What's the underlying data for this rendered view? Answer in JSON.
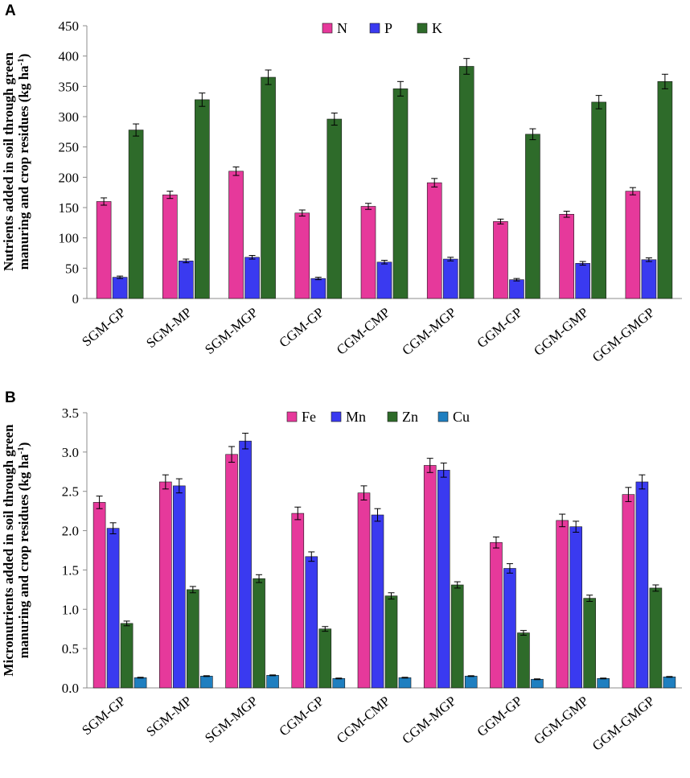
{
  "chart_data": [
    {
      "panel": "A",
      "type": "bar",
      "title": "",
      "ylabel_line1": "Nutrients added in soil through green",
      "ylabel_line2": "manuring and crop residues (kg ha",
      "ylabel_sup": "-1",
      "ylabel_close": ")",
      "xlabel": "",
      "ylim": [
        0,
        450
      ],
      "ytick_step": 50,
      "yticks": [
        "0",
        "50",
        "100",
        "150",
        "200",
        "250",
        "300",
        "350",
        "400",
        "450"
      ],
      "categories": [
        "SGM-GP",
        "SGM-MP",
        "SGM-MGP",
        "CGM-GP",
        "CGM-CMP",
        "CGM-MGP",
        "GGM-GP",
        "GGM-GMP",
        "GGM-GMGP"
      ],
      "series": [
        {
          "name": "N",
          "color": "#e6399b",
          "values": [
            160,
            171,
            210,
            141,
            152,
            191,
            127,
            139,
            177
          ],
          "errors": [
            6,
            6,
            7,
            5,
            5,
            7,
            4,
            5,
            6
          ]
        },
        {
          "name": "P",
          "color": "#3a3af0",
          "values": [
            35,
            62,
            68,
            33,
            60,
            65,
            31,
            58,
            64
          ],
          "errors": [
            2,
            3,
            3,
            2,
            3,
            3,
            2,
            3,
            3
          ]
        },
        {
          "name": "K",
          "color": "#2e6b2a",
          "values": [
            278,
            328,
            365,
            296,
            346,
            383,
            271,
            324,
            358
          ],
          "errors": [
            10,
            11,
            12,
            10,
            12,
            13,
            9,
            11,
            12
          ]
        }
      ],
      "legend_position": "top-center"
    },
    {
      "panel": "B",
      "type": "bar",
      "title": "",
      "ylabel_line1": "Micronutrients added in soil through green",
      "ylabel_line2": "manuring and crop residues (kg ha",
      "ylabel_sup": "-1",
      "ylabel_close": ")",
      "xlabel": "",
      "ylim": [
        0,
        3.5
      ],
      "ytick_step": 0.5,
      "yticks": [
        "0.0",
        "0.5",
        "1.0",
        "1.5",
        "2.0",
        "2.5",
        "3.0",
        "3.5"
      ],
      "categories": [
        "SGM-GP",
        "SGM-MP",
        "SGM-MGP",
        "CGM-GP",
        "CGM-CMP",
        "CGM-MGP",
        "GGM-GP",
        "GGM-GMP",
        "GGM-GMGP"
      ],
      "series": [
        {
          "name": "Fe",
          "color": "#e6399b",
          "values": [
            2.36,
            2.62,
            2.97,
            2.22,
            2.48,
            2.83,
            1.85,
            2.13,
            2.46
          ],
          "errors": [
            0.08,
            0.09,
            0.1,
            0.08,
            0.09,
            0.09,
            0.07,
            0.08,
            0.09
          ]
        },
        {
          "name": "Mn",
          "color": "#3a3af0",
          "values": [
            2.03,
            2.57,
            3.14,
            1.67,
            2.2,
            2.77,
            1.52,
            2.05,
            2.62
          ],
          "errors": [
            0.07,
            0.09,
            0.1,
            0.06,
            0.08,
            0.09,
            0.06,
            0.07,
            0.09
          ]
        },
        {
          "name": "Zn",
          "color": "#2e6b2a",
          "values": [
            0.82,
            1.25,
            1.39,
            0.75,
            1.17,
            1.31,
            0.7,
            1.14,
            1.27
          ],
          "errors": [
            0.03,
            0.04,
            0.05,
            0.03,
            0.04,
            0.04,
            0.03,
            0.04,
            0.04
          ]
        },
        {
          "name": "Cu",
          "color": "#1f7fc0",
          "values": [
            0.13,
            0.15,
            0.16,
            0.12,
            0.13,
            0.15,
            0.11,
            0.12,
            0.14
          ],
          "errors": [
            0.005,
            0.005,
            0.005,
            0.005,
            0.005,
            0.005,
            0.005,
            0.005,
            0.005
          ]
        }
      ],
      "legend_position": "top-center"
    }
  ]
}
